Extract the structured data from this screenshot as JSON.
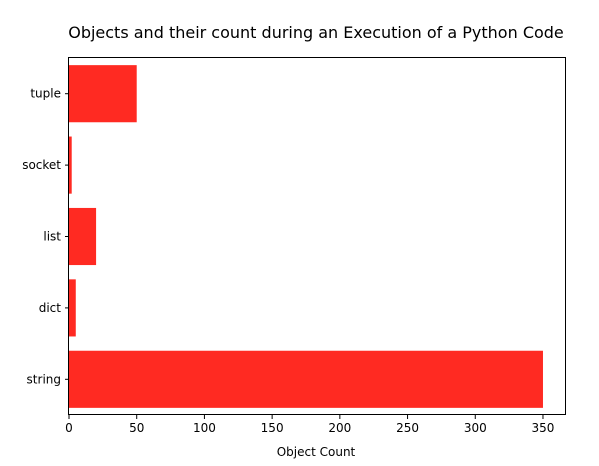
{
  "chart_data": {
    "type": "bar",
    "orientation": "horizontal",
    "title": "Objects and their count during an Execution of a Python Code",
    "xlabel": "Object Count",
    "ylabel": "",
    "categories": [
      "string",
      "dict",
      "list",
      "socket",
      "tuple"
    ],
    "values": [
      350,
      5,
      20,
      2,
      50
    ],
    "xlim": [
      0,
      367
    ],
    "xticks": [
      0,
      50,
      100,
      150,
      200,
      250,
      300,
      350
    ],
    "bar_color": "#ff2a22",
    "grid": false,
    "legend": "none"
  }
}
